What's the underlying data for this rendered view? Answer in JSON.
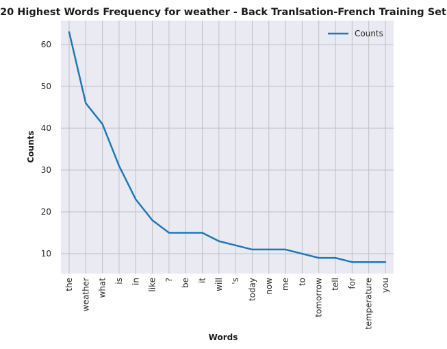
{
  "chart_data": {
    "type": "line",
    "title": "20 Highest Words Frequency for weather - Back Tranlsation-French Training Set",
    "xlabel": "Words",
    "ylabel": "Counts",
    "categories": [
      "the",
      "weather",
      "what",
      "is",
      "in",
      "like",
      "?",
      "be",
      "it",
      "will",
      "'s",
      "today",
      "now",
      "me",
      "to",
      "tomorrow",
      "tell",
      "for",
      "temperature",
      "you"
    ],
    "series": [
      {
        "name": "Counts",
        "values": [
          63,
          46,
          41,
          31,
          23,
          18,
          15,
          15,
          15,
          13,
          12,
          11,
          11,
          11,
          10,
          9,
          9,
          8,
          8,
          8
        ],
        "color": "#1f77b4"
      }
    ],
    "yticks": [
      10,
      20,
      30,
      40,
      50,
      60
    ],
    "ylim": [
      5.25,
      65.75
    ],
    "grid": true,
    "legend": "top-right",
    "background": "#eaeaf2",
    "grid_color": "#c0c0c0"
  }
}
